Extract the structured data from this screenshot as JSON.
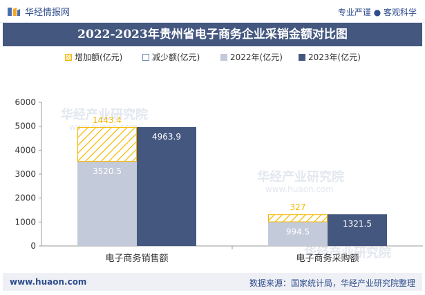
{
  "header": {
    "brand": "华经情报网",
    "slogan": "专业严谨 ● 客观科学"
  },
  "watermark": {
    "cn": "华经产业研究院",
    "url": "www.huaon.com"
  },
  "footer": {
    "website": "www.huaon.com",
    "source": "数据来源：国家统计局，华经产业研究院整理"
  },
  "colors": {
    "title_bg": "#44577f",
    "increase": "#f5b800",
    "decrease": "#6f8fb8",
    "y2022": "#c3cad9",
    "y2023": "#44577f"
  },
  "chart_data": {
    "type": "bar",
    "title": "2022-2023年贵州省电子商务企业采销金额对比图",
    "categories": [
      "电子商务销售额",
      "电子商务采购额"
    ],
    "legend": [
      "增加额(亿元)",
      "减少额(亿元)",
      "2022年(亿元)",
      "2023年(亿元)"
    ],
    "series": [
      {
        "name": "2022年(亿元)",
        "values": [
          3520.5,
          994.5
        ]
      },
      {
        "name": "增加额(亿元)",
        "values": [
          1443.4,
          327
        ]
      },
      {
        "name": "减少额(亿元)",
        "values": [
          null,
          null
        ]
      },
      {
        "name": "2023年(亿元)",
        "values": [
          4963.9,
          1321.5
        ]
      }
    ],
    "data_labels": {
      "y2022": [
        "3520.5",
        "994.5"
      ],
      "increase": [
        "1443.4",
        "327"
      ],
      "y2023": [
        "4963.9",
        "1321.5"
      ]
    },
    "yticks": [
      "0",
      "1000",
      "2000",
      "3000",
      "4000",
      "5000",
      "6000"
    ],
    "ylim": [
      0,
      6000
    ],
    "xlabel": "",
    "ylabel": ""
  }
}
